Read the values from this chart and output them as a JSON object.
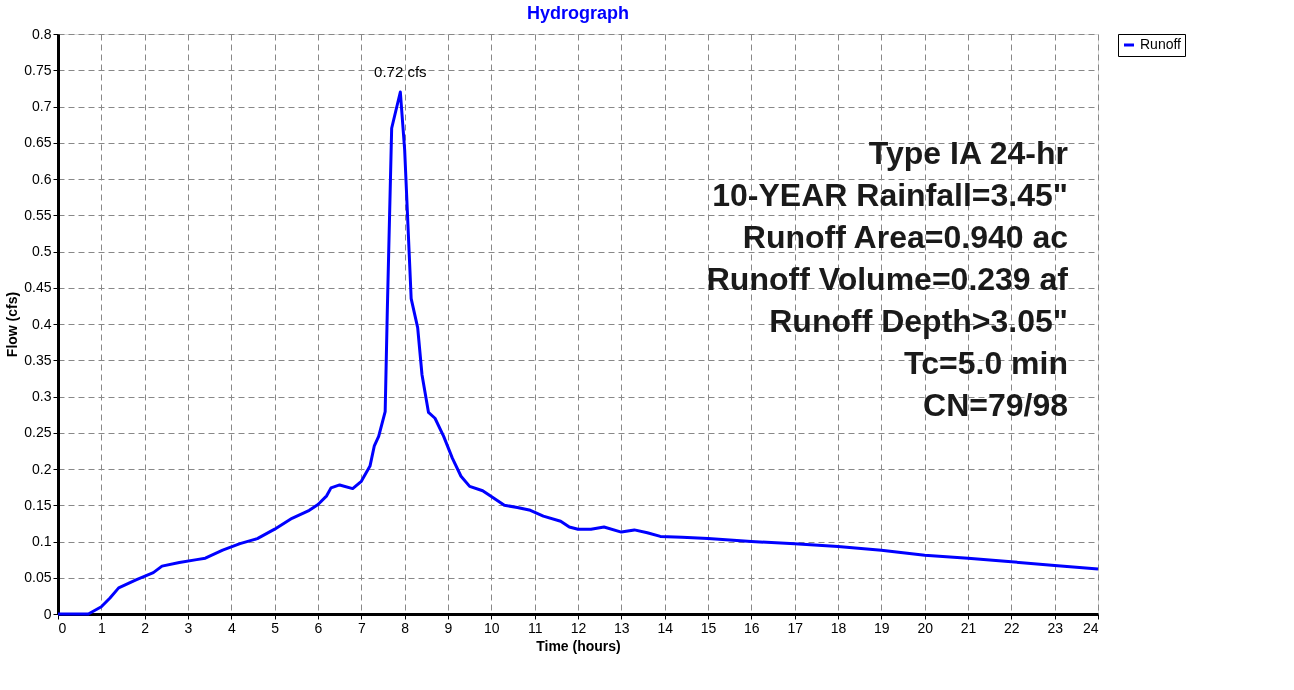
{
  "chart_data": {
    "type": "line",
    "title": "Hydrograph",
    "xlabel": "Time  (hours)",
    "ylabel": "Flow  (cfs)",
    "x": [
      0,
      0.7,
      1.0,
      1.2,
      1.4,
      1.8,
      2.2,
      2.4,
      2.8,
      3.2,
      3.4,
      3.8,
      4.2,
      4.6,
      5.0,
      5.4,
      5.8,
      6.0,
      6.2,
      6.3,
      6.5,
      6.8,
      7.0,
      7.2,
      7.3,
      7.4,
      7.55,
      7.6,
      7.7,
      7.9,
      8.0,
      8.15,
      8.3,
      8.4,
      8.55,
      8.7,
      8.9,
      9.1,
      9.3,
      9.5,
      9.8,
      10.0,
      10.3,
      10.6,
      10.9,
      11.2,
      11.6,
      11.8,
      12.0,
      12.3,
      12.6,
      13.0,
      13.3,
      13.6,
      13.9,
      14.4,
      15,
      16,
      17,
      18,
      19,
      20,
      21,
      22,
      23,
      24
    ],
    "series": [
      {
        "name": "Runoff",
        "color": "#0000ff",
        "values": [
          0,
          0,
          0.01,
          0.022,
          0.036,
          0.047,
          0.057,
          0.066,
          0.071,
          0.075,
          0.077,
          0.088,
          0.097,
          0.104,
          0.117,
          0.132,
          0.143,
          0.151,
          0.163,
          0.174,
          0.178,
          0.173,
          0.183,
          0.204,
          0.232,
          0.245,
          0.279,
          0.42,
          0.67,
          0.72,
          0.64,
          0.435,
          0.395,
          0.33,
          0.278,
          0.27,
          0.245,
          0.215,
          0.19,
          0.176,
          0.17,
          0.162,
          0.15,
          0.147,
          0.143,
          0.135,
          0.128,
          0.12,
          0.117,
          0.117,
          0.12,
          0.113,
          0.116,
          0.112,
          0.107,
          0.106,
          0.104,
          0.1,
          0.097,
          0.093,
          0.088,
          0.081,
          0.077,
          0.072,
          0.067,
          0.062
        ]
      }
    ],
    "xlim": [
      0,
      24
    ],
    "xticks": [
      0,
      1,
      2,
      3,
      4,
      5,
      6,
      7,
      8,
      9,
      10,
      11,
      12,
      13,
      14,
      15,
      16,
      17,
      18,
      19,
      20,
      21,
      22,
      23,
      24
    ],
    "ylim": [
      0,
      0.8
    ],
    "yticks": [
      0,
      0.05,
      0.1,
      0.15,
      0.2,
      0.25,
      0.3,
      0.35,
      0.4,
      0.45,
      0.5,
      0.55,
      0.6,
      0.65,
      0.7,
      0.75,
      0.8
    ],
    "grid": true,
    "legend": "top right",
    "marker": "none",
    "line_style": "solid",
    "annotations": [
      {
        "text": "0.72 cfs",
        "x": 7.9,
        "y": 0.72
      },
      "Type IA 24-hr",
      "10-YEAR Rainfall=3.45\"",
      "Runoff Area=0.940 ac",
      "Runoff Volume=0.239 af",
      "Runoff Depth>3.05\"",
      "Tc=5.0 min",
      "CN=79/98"
    ]
  }
}
